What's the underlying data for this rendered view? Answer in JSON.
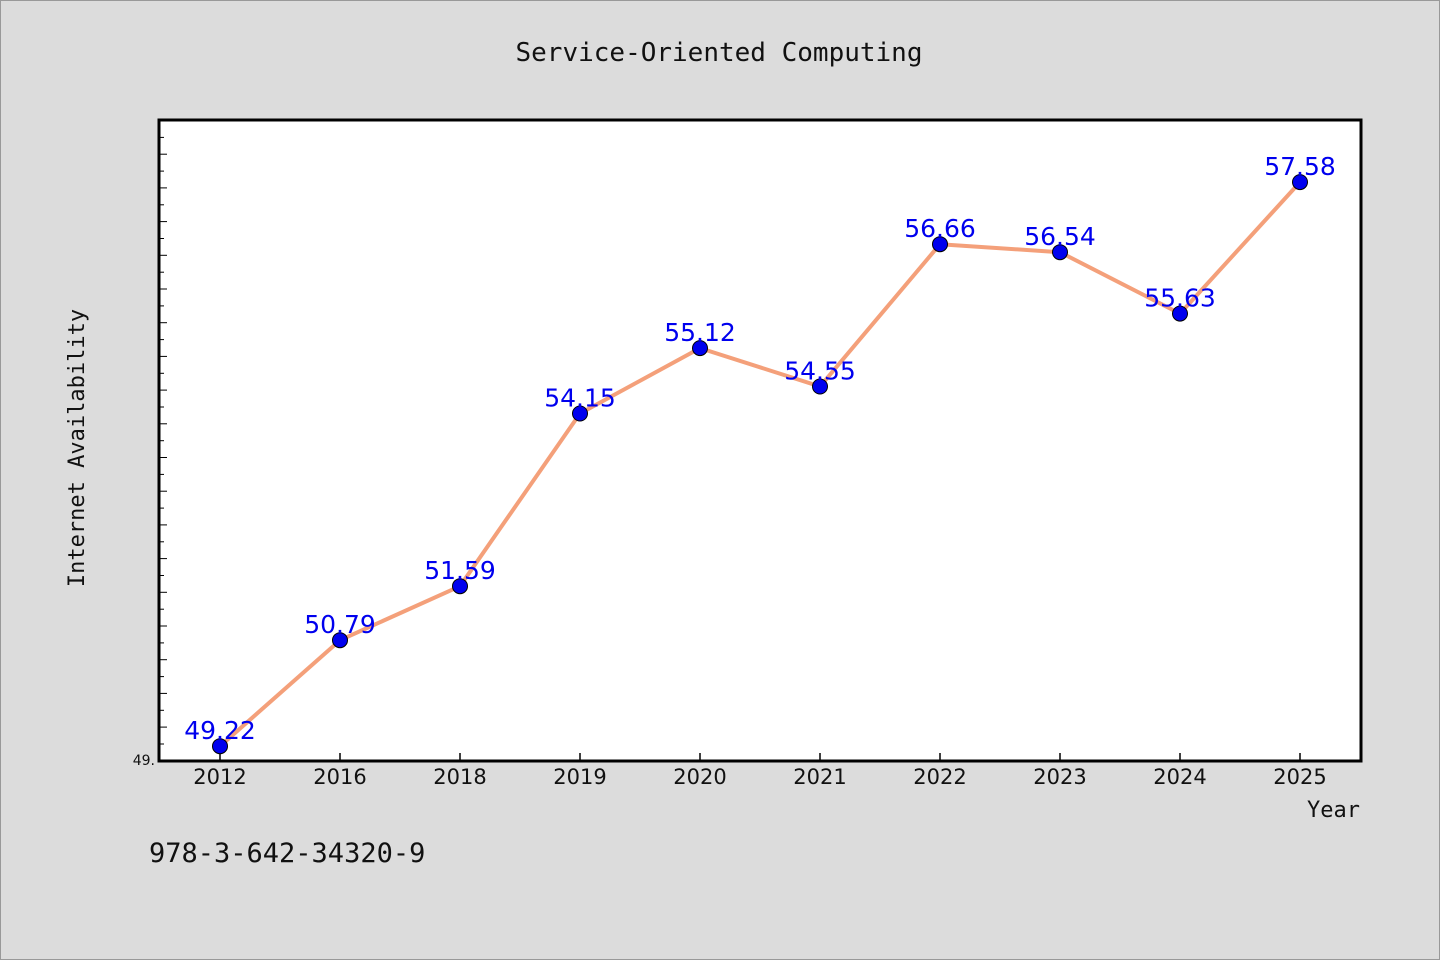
{
  "chart_data": {
    "type": "line",
    "title": "Service-Oriented Computing",
    "xlabel": "Year",
    "ylabel": "Internet Availability",
    "categories": [
      "2012",
      "2016",
      "2018",
      "2019",
      "2020",
      "2021",
      "2022",
      "2023",
      "2024",
      "2025"
    ],
    "series": [
      {
        "values": [
          49.22,
          50.79,
          51.59,
          54.15,
          55.12,
          54.55,
          56.66,
          56.54,
          55.63,
          57.58
        ]
      }
    ],
    "data_labels": [
      "49.22",
      "50.79",
      "51.59",
      "54.15",
      "55.12",
      "54.55",
      "56.66",
      "56.54",
      "55.63",
      "57.58"
    ],
    "y_tick_labels": [
      "49."
    ],
    "ylim": [
      49.0,
      58.5
    ],
    "grid": false,
    "line_color": "#f4a07a",
    "marker_color": "#0000ee",
    "label_color": "#0000ee"
  },
  "footnote": "978-3-642-34320-9"
}
